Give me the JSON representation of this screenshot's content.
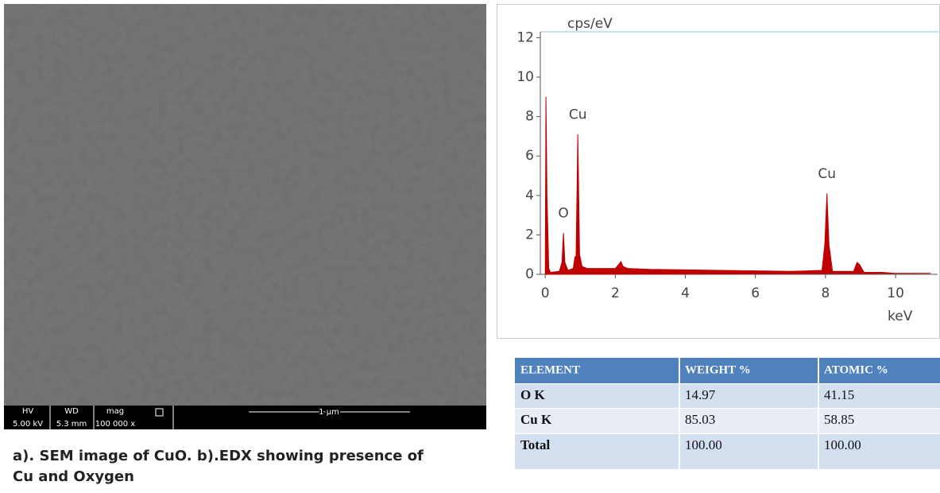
{
  "chart_data": {
    "type": "area",
    "x_label": "keV",
    "y_label": "cps/eV",
    "x": [
      0,
      0.02,
      0.05,
      0.1,
      0.15,
      0.4,
      0.48,
      0.52,
      0.56,
      0.65,
      0.8,
      0.85,
      0.88,
      0.93,
      0.98,
      1.05,
      1.2,
      2.0,
      2.1,
      2.16,
      2.22,
      2.35,
      3,
      5,
      7,
      7.9,
      7.98,
      8.04,
      8.1,
      8.2,
      8.8,
      8.9,
      8.97,
      9.1,
      9.6,
      10,
      11
    ],
    "values": [
      0,
      9.0,
      4.0,
      0.3,
      0.1,
      0.15,
      0.6,
      2.1,
      0.6,
      0.2,
      0.3,
      0.9,
      0.9,
      7.1,
      1.0,
      0.4,
      0.3,
      0.3,
      0.5,
      0.65,
      0.4,
      0.3,
      0.25,
      0.2,
      0.15,
      0.2,
      1.5,
      4.1,
      1.5,
      0.15,
      0.15,
      0.6,
      0.5,
      0.1,
      0.1,
      0.05,
      0.05
    ],
    "color": "#c00000",
    "xlim": [
      -0.14,
      11.2
    ],
    "xticks": [
      0,
      2,
      4,
      6,
      8,
      10
    ],
    "ylim": [
      0,
      12.3
    ],
    "yticks": [
      0,
      2,
      4,
      6,
      8,
      10,
      12
    ],
    "grid": false,
    "annotations": [
      {
        "text": "O",
        "x": 0.52,
        "y": 2.6
      },
      {
        "text": "Cu",
        "x": 0.93,
        "y": 7.6
      },
      {
        "text": "Cu",
        "x": 8.04,
        "y": 4.6
      }
    ]
  },
  "sem": {
    "fields": [
      [
        "HV",
        "5.00 kV"
      ],
      [
        "WD",
        "5.3 mm"
      ],
      [
        "mag",
        "100 000 x"
      ]
    ],
    "scale": "1 µm"
  },
  "table": {
    "header": [
      "ELEMENT",
      "WEIGHT %",
      "ATOMIC %"
    ],
    "rows": [
      [
        "O K",
        "14.97",
        "41.15"
      ],
      [
        "Cu K",
        "85.03",
        "58.85"
      ],
      [
        "Total",
        "100.00",
        "100.00"
      ]
    ]
  },
  "caption": [
    "a). SEM image of CuO. b).EDX showing presence of",
    "Cu and Oxygen"
  ]
}
